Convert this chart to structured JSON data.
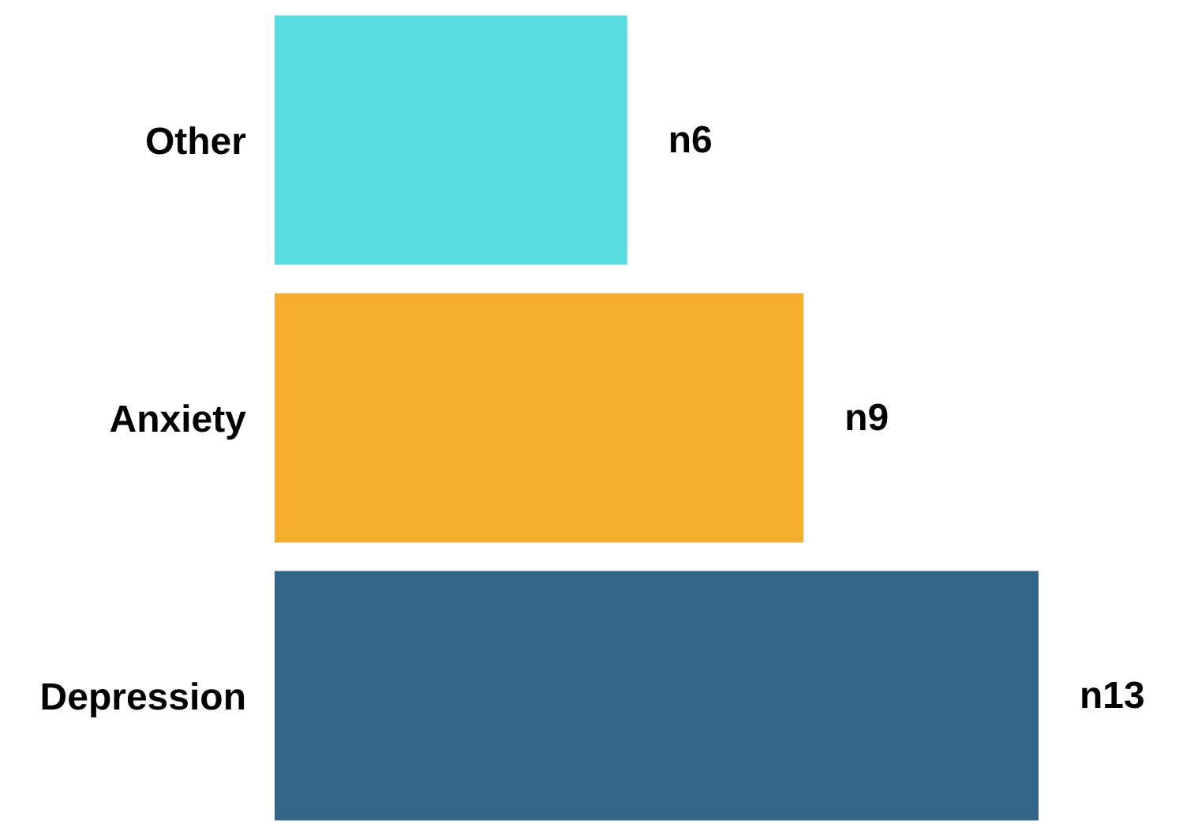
{
  "chart_data": {
    "type": "bar",
    "orientation": "horizontal",
    "categories": [
      "Other",
      "Anxiety",
      "Depression"
    ],
    "values": [
      6,
      9,
      13
    ],
    "colors": [
      "#59dcdf",
      "#f4ae2f",
      "#336589"
    ],
    "value_labels": [
      "n6",
      "n9",
      "n13"
    ]
  }
}
